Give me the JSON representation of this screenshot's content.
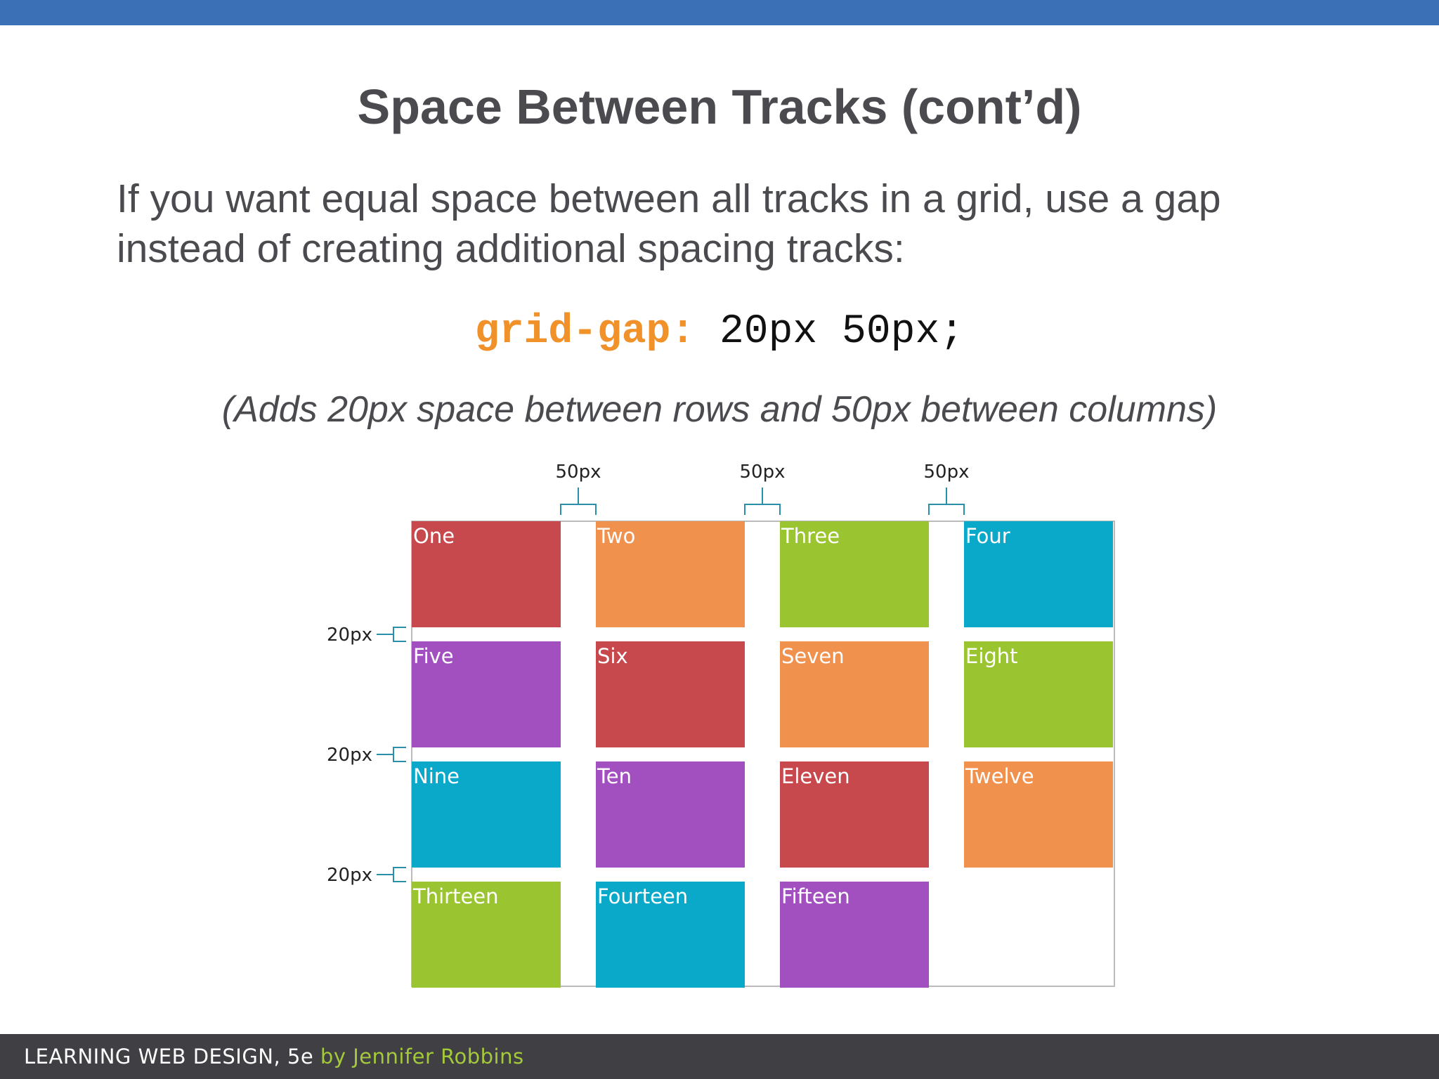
{
  "slide": {
    "title": "Space Between Tracks (cont’d)",
    "intro": "If you want equal space between all tracks in a grid, use a gap instead of creating additional spacing tracks:",
    "code": {
      "property": "grid-gap:",
      "value": " 20px 50px;"
    },
    "note": "(Adds 20px space between rows and 50px between columns)"
  },
  "figure": {
    "column_gap_labels": [
      "50px",
      "50px",
      "50px"
    ],
    "row_gap_labels": [
      "20px",
      "20px",
      "20px"
    ],
    "cells": [
      {
        "label": "One",
        "color": "#c8494d"
      },
      {
        "label": "Two",
        "color": "#f0914e"
      },
      {
        "label": "Three",
        "color": "#9bc431"
      },
      {
        "label": "Four",
        "color": "#0aa8c9"
      },
      {
        "label": "Five",
        "color": "#a24fc0"
      },
      {
        "label": "Six",
        "color": "#c8494d"
      },
      {
        "label": "Seven",
        "color": "#f0914e"
      },
      {
        "label": "Eight",
        "color": "#9bc431"
      },
      {
        "label": "Nine",
        "color": "#0aa8c9"
      },
      {
        "label": "Ten",
        "color": "#a24fc0"
      },
      {
        "label": "Eleven",
        "color": "#c8494d"
      },
      {
        "label": "Twelve",
        "color": "#f0914e"
      },
      {
        "label": "Thirteen",
        "color": "#9bc431"
      },
      {
        "label": "Fourteen",
        "color": "#0aa8c9"
      },
      {
        "label": "Fifteen",
        "color": "#a24fc0"
      }
    ],
    "marker_color": "#2a8fa8"
  },
  "footer": {
    "book": "LEARNING WEB DESIGN, 5e",
    "author": " by Jennifer Robbins"
  }
}
